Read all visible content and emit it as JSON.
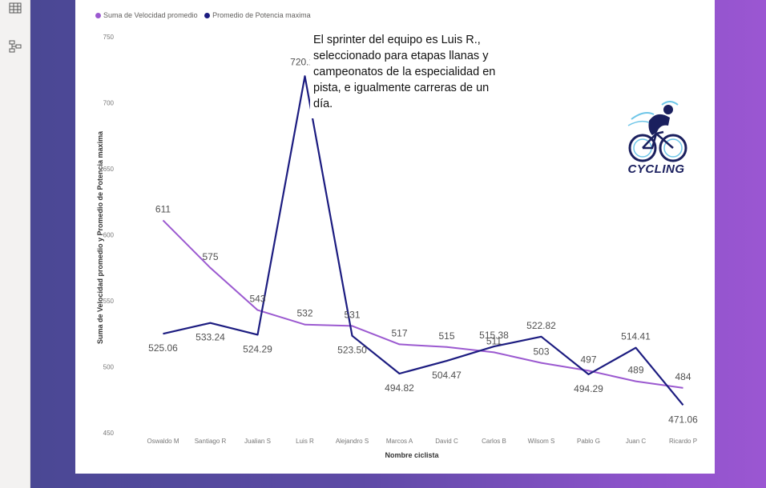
{
  "colors": {
    "series1": "#9b59d0",
    "series2": "#1c1c80"
  },
  "icons": [
    "table-icon",
    "model-icon"
  ],
  "chart_data": {
    "type": "line",
    "title": "",
    "xlabel": "Nombre ciclista",
    "ylabel": "Suma de Velocidad promedio y Promedio de Potencia maxima",
    "ylim": [
      450,
      750
    ],
    "yticks": [
      450,
      500,
      550,
      600,
      650,
      700,
      750
    ],
    "grid": false,
    "legend_placement": "top-left",
    "categories": [
      "Oswaldo M",
      "Santiago R",
      "Jualian S",
      "Luis R",
      "Alejandro S",
      "Marcos A",
      "David C",
      "Carlos B",
      "Wilsom S",
      "Pablo G",
      "Juan C",
      "Ricardo P"
    ],
    "series": [
      {
        "name": "Suma de Velocidad promedio",
        "values": [
          611,
          575,
          543,
          532,
          531,
          517,
          515,
          511,
          503,
          497,
          489,
          484
        ],
        "labels": [
          "611",
          "575",
          "543",
          "532",
          "531",
          "517",
          "515",
          "511",
          "503",
          "497",
          "489",
          "484"
        ]
      },
      {
        "name": "Promedio de Potencia maxima",
        "values": [
          525.06,
          533.24,
          524.29,
          720.12,
          523.5,
          494.82,
          504.47,
          515.38,
          522.82,
          494.29,
          514.41,
          471.06
        ],
        "labels": [
          "525.06",
          "533.24",
          "524.29",
          "720.12",
          "523.50",
          "494.82",
          "504.47",
          "515.38",
          "522.82",
          "494.29",
          "514.41",
          "471.06"
        ]
      }
    ]
  },
  "annotation": {
    "text": "El sprinter del equipo es Luis R., seleccionado para etapas llanas y campeonatos de la especialidad en pista, e igualmente carreras de un día."
  },
  "logo": {
    "text": "CYCLING"
  }
}
